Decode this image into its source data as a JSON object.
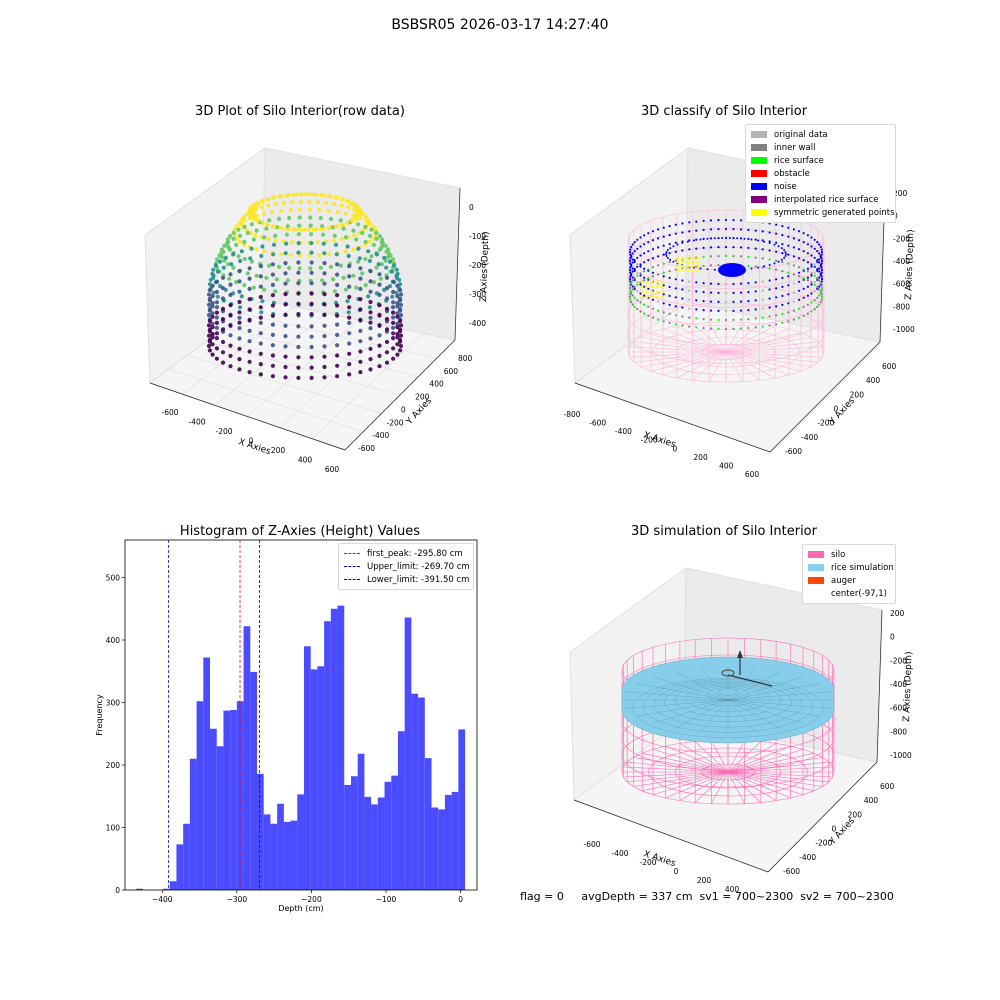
{
  "suptitle": "BSBSR05 2026-03-17 14:27:40",
  "status_text": "flag = 0     avgDepth = 337 cm  sv1 = 700~2300  sv2 = 700~2300",
  "chart_data": [
    {
      "type": "scatter",
      "title": "3D Plot of Silo Interior(row data)",
      "xlabel": "X Axies",
      "ylabel": "Y Axies",
      "zlabel": "Z Axies (Depth)",
      "xticks": [
        "-600",
        "-400",
        "-200",
        "0",
        "200",
        "400",
        "600"
      ],
      "yticks": [
        "-600",
        "-400",
        "-200",
        "0",
        "200",
        "400",
        "600",
        "800"
      ],
      "zticks": [
        "-400",
        "-300",
        "-200",
        "-100",
        "0"
      ],
      "colormap": [
        "#440154",
        "#3b528b",
        "#21918c",
        "#5ec962",
        "#fde725"
      ]
    },
    {
      "type": "scatter",
      "title": "3D classify of Silo Interior",
      "xlabel": "X Axies",
      "ylabel": "Y Axies",
      "zlabel": "Z Axies (Depth)",
      "xticks": [
        "-800",
        "-600",
        "-400",
        "-200",
        "0",
        "200",
        "400",
        "600"
      ],
      "yticks": [
        "-600",
        "-400",
        "-200",
        "0",
        "200",
        "400",
        "600"
      ],
      "zticks": [
        "-1000",
        "-800",
        "-600",
        "-400",
        "-200",
        "0",
        "200"
      ],
      "legend": [
        {
          "name": "original data",
          "color": "#b3b3b3"
        },
        {
          "name": "inner wall",
          "color": "#808080"
        },
        {
          "name": "rice surface",
          "color": "#00ff00"
        },
        {
          "name": "obstacle",
          "color": "#ff0000"
        },
        {
          "name": "noise",
          "color": "#0000ff"
        },
        {
          "name": "interpolated rice surface",
          "color": "#800080"
        },
        {
          "name": "symmetric generated points",
          "color": "#ffff00"
        }
      ]
    },
    {
      "type": "bar",
      "title": "Histogram of Z-Axies (Height) Values",
      "xlabel": "Depth (cm)",
      "ylabel": "Frequency",
      "xlim": [
        -450,
        22
      ],
      "ylim": [
        0,
        560
      ],
      "xticks": [
        -400,
        -300,
        -200,
        -100,
        0
      ],
      "yticks": [
        0,
        100,
        200,
        300,
        400,
        500
      ],
      "bar_color": "#4b4bff",
      "bins": [
        -435,
        -426,
        -417,
        -408,
        -399,
        -390,
        -381,
        -372,
        -363,
        -354,
        -345,
        -336,
        -327,
        -318,
        -309,
        -300,
        -291,
        -282,
        -273,
        -264,
        -255,
        -246,
        -237,
        -228,
        -219,
        -210,
        -201,
        -192,
        -183,
        -174,
        -165,
        -156,
        -147,
        -138,
        -129,
        -120,
        -111,
        -102,
        -93,
        -84,
        -75,
        -66,
        -57,
        -48,
        -39,
        -30,
        -21,
        -12,
        -3
      ],
      "values": [
        2,
        0,
        0,
        0,
        2,
        14,
        73,
        106,
        210,
        302,
        372,
        258,
        230,
        287,
        288,
        302,
        422,
        349,
        186,
        121,
        106,
        138,
        109,
        111,
        153,
        390,
        353,
        358,
        430,
        450,
        455,
        168,
        182,
        218,
        149,
        137,
        148,
        173,
        183,
        254,
        436,
        314,
        308,
        211,
        132,
        129,
        152,
        157,
        257
      ],
      "bin_width": 9,
      "vlines": [
        {
          "label": "first_peak: -295.80 cm",
          "x": -295.8,
          "color": "#ff0000"
        },
        {
          "label": "Upper_limit: -269.70 cm",
          "x": -269.7,
          "color": "#0000cc"
        },
        {
          "label": "Lower_limit: -391.50 cm",
          "x": -391.5,
          "color": "#0000cc"
        }
      ]
    },
    {
      "type": "scatter",
      "title": "3D simulation of Silo Interior",
      "xlabel": "X Axies",
      "ylabel": "Y Axies",
      "zlabel": "Z Axies (Depth)",
      "xticks": [
        "-600",
        "-400",
        "-200",
        "0",
        "200",
        "400"
      ],
      "yticks": [
        "-600",
        "-400",
        "-200",
        "0",
        "200",
        "400",
        "600"
      ],
      "zticks": [
        "-1000",
        "-800",
        "-600",
        "-400",
        "-200",
        "0",
        "200"
      ],
      "legend": [
        {
          "name": "silo",
          "color": "#ff69b4"
        },
        {
          "name": "rice simulation",
          "color": "#87ceeb"
        },
        {
          "name": "auger",
          "color": "#ff4500"
        },
        {
          "name": "center(-97,1)",
          "color": ""
        }
      ]
    }
  ]
}
